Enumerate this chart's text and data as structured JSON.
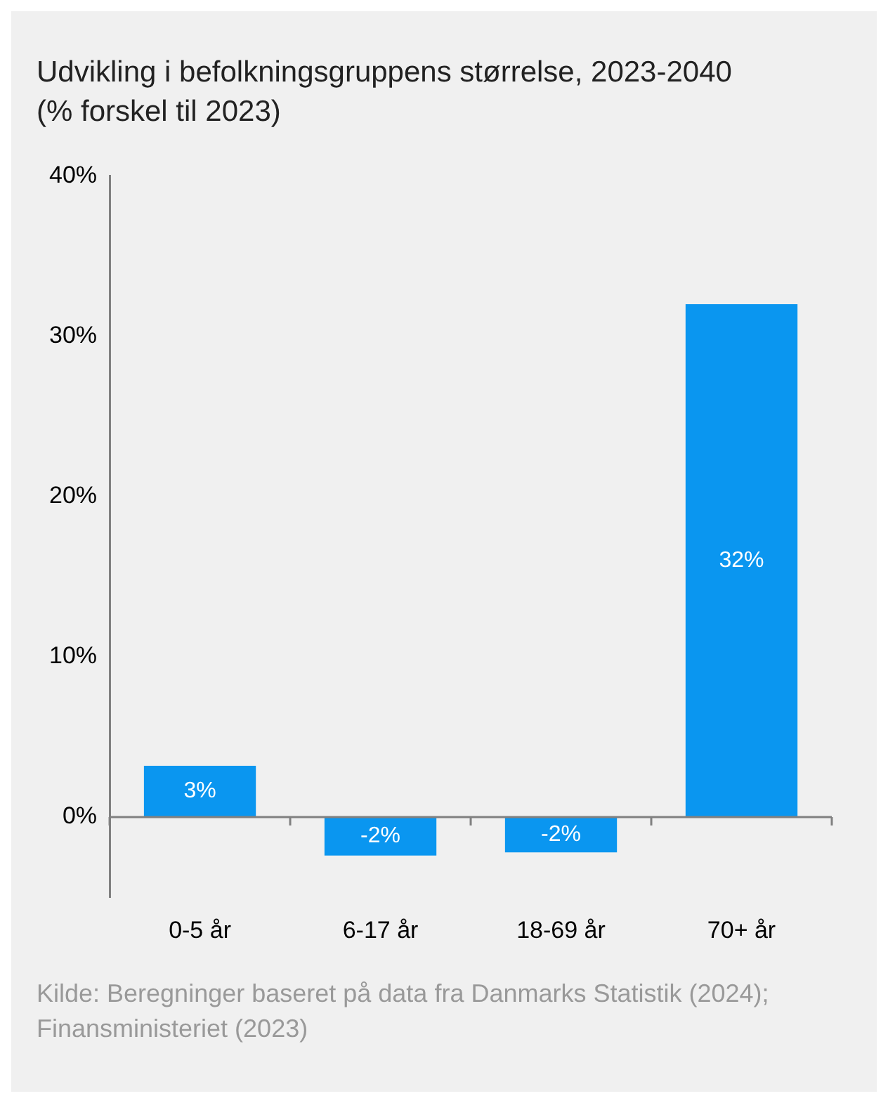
{
  "chart_data": {
    "type": "bar",
    "title": "Udvikling i befolkningsgruppens størrelse, 2023-2040 (% forskel til 2023)",
    "categories": [
      "0-5 år",
      "6-17 år",
      "18-69 år",
      "70+ år"
    ],
    "values": [
      3.2,
      -2.4,
      -2.2,
      32
    ],
    "value_labels": [
      "3%",
      "-2%",
      "-2%",
      "32%"
    ],
    "color": "#0a96f0",
    "ylim": [
      -5,
      40
    ],
    "yticks": [
      {
        "value": 0,
        "label": "0%"
      },
      {
        "value": 10,
        "label": "10%"
      },
      {
        "value": 20,
        "label": "20%"
      },
      {
        "value": 30,
        "label": "30%"
      },
      {
        "value": 40,
        "label": "40%"
      }
    ],
    "annotations": [
      "Kilde: Beregninger baseret på data fra Danmarks Statistik (2024); Finansministeriet (2023)"
    ]
  }
}
